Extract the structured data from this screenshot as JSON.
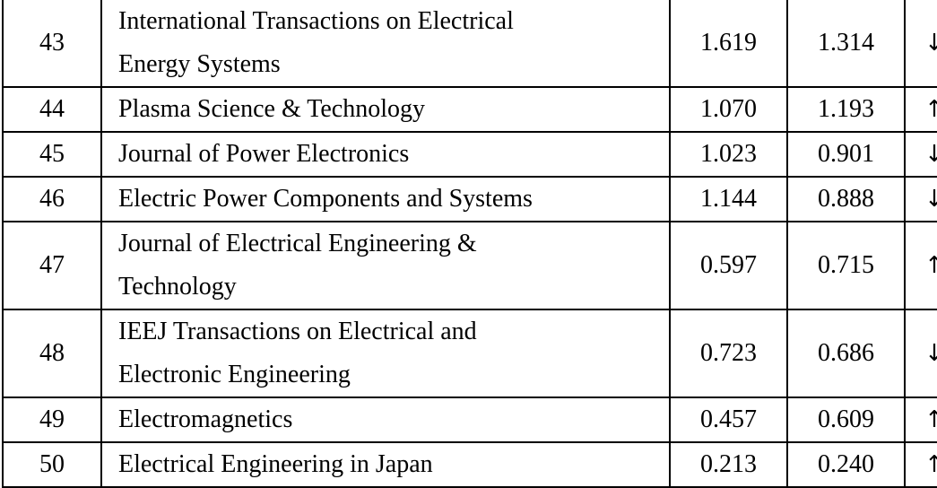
{
  "table": {
    "rows": [
      {
        "rank": "43",
        "name_lines": [
          "International Transactions on Electrical",
          "Energy Systems"
        ],
        "value1": "1.619",
        "value2": "1.314",
        "trend": "↓",
        "trend_name": "down-arrow-icon"
      },
      {
        "rank": "44",
        "name_lines": [
          "Plasma Science & Technology"
        ],
        "value1": "1.070",
        "value2": "1.193",
        "trend": "↑",
        "trend_name": "up-arrow-icon"
      },
      {
        "rank": "45",
        "name_lines": [
          "Journal of Power Electronics"
        ],
        "value1": "1.023",
        "value2": "0.901",
        "trend": "↓",
        "trend_name": "down-arrow-icon"
      },
      {
        "rank": "46",
        "name_lines": [
          "Electric Power Components and Systems"
        ],
        "value1": "1.144",
        "value2": "0.888",
        "trend": "↓",
        "trend_name": "down-arrow-icon"
      },
      {
        "rank": "47",
        "name_lines": [
          "Journal of Electrical Engineering &",
          "Technology"
        ],
        "value1": "0.597",
        "value2": "0.715",
        "trend": "↑",
        "trend_name": "up-arrow-icon"
      },
      {
        "rank": "48",
        "name_lines": [
          "IEEJ Transactions on Electrical and",
          "Electronic Engineering"
        ],
        "value1": "0.723",
        "value2": "0.686",
        "trend": "↓",
        "trend_name": "down-arrow-icon"
      },
      {
        "rank": "49",
        "name_lines": [
          "Electromagnetics"
        ],
        "value1": "0.457",
        "value2": "0.609",
        "trend": "↑",
        "trend_name": "up-arrow-icon"
      },
      {
        "rank": "50",
        "name_lines": [
          "Electrical Engineering in Japan"
        ],
        "value1": "0.213",
        "value2": "0.240",
        "trend": "↑",
        "trend_name": "up-arrow-icon"
      }
    ]
  }
}
